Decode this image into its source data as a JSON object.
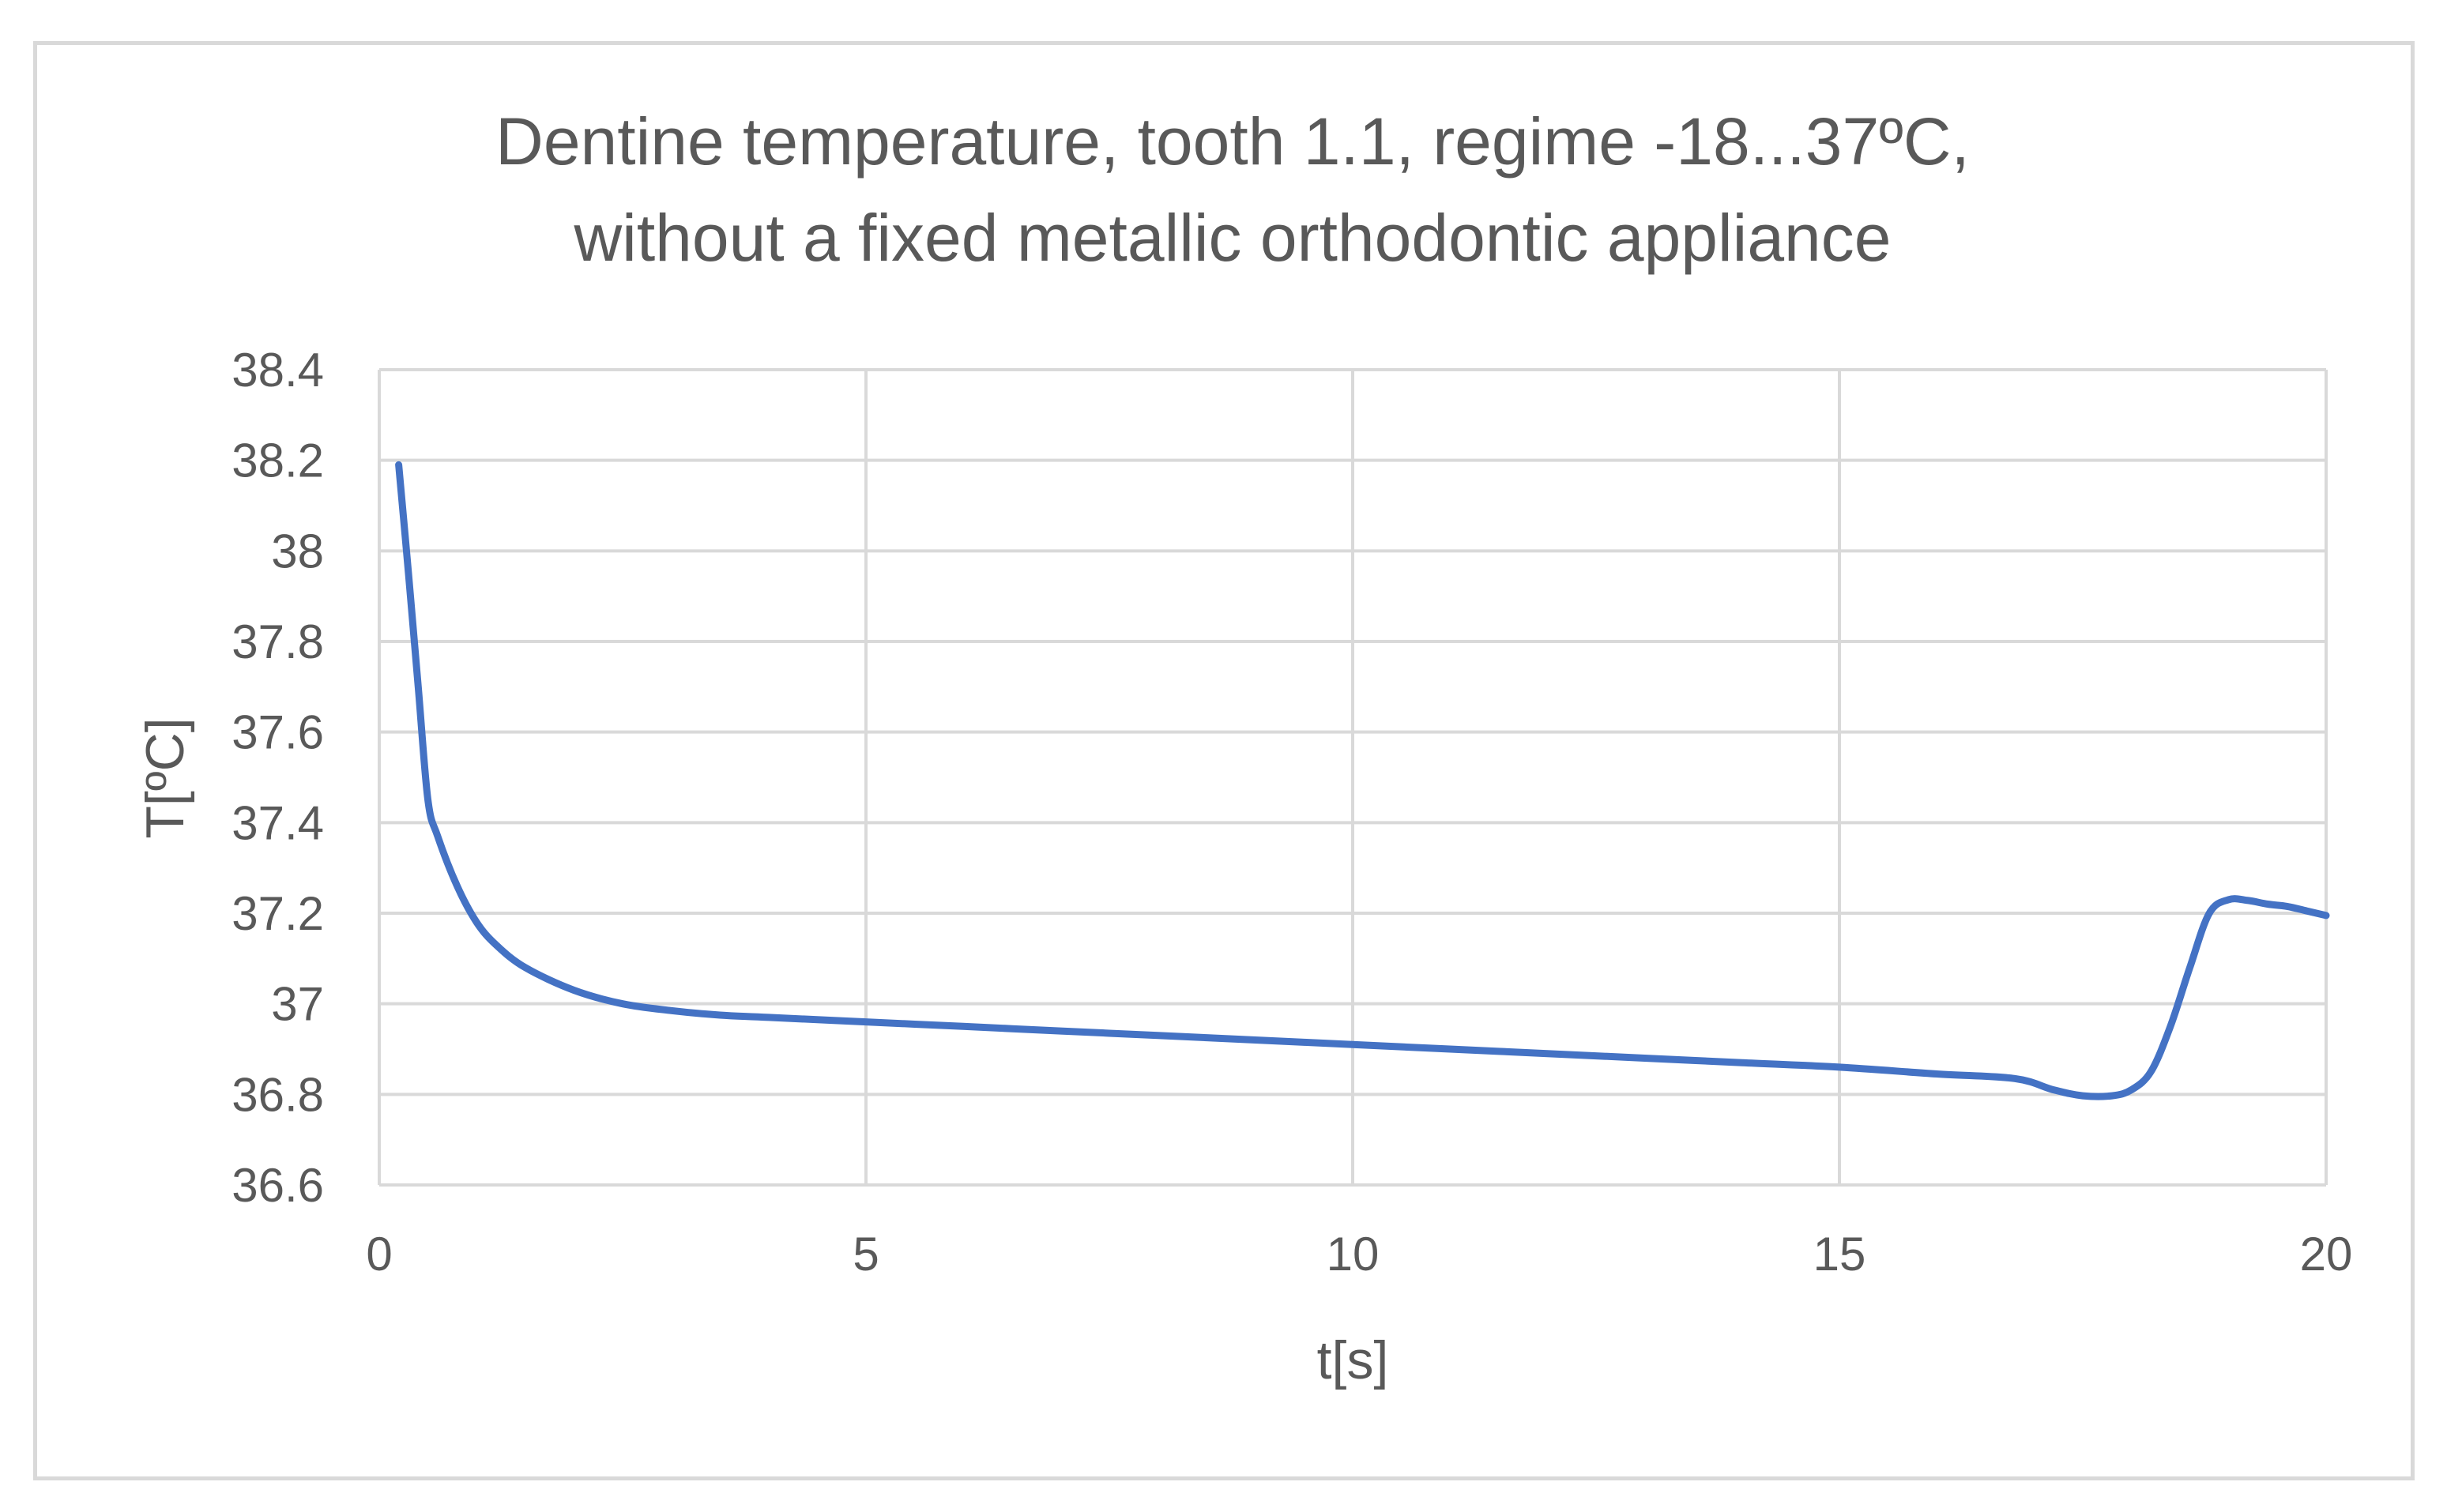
{
  "chart_data": {
    "type": "line",
    "title_line1": "Dentine temperature, tooth 1.1, regime -18...37ºC,",
    "title_line2": "without a fixed metallic orthodontic appliance",
    "xlabel": "t[s]",
    "ylabel": "T[ºC]",
    "xlim": [
      0,
      20
    ],
    "ylim": [
      36.6,
      38.4
    ],
    "x_ticks": [
      "0",
      "5",
      "10",
      "15",
      "20"
    ],
    "y_ticks": [
      "36.6",
      "36.8",
      "37",
      "37.2",
      "37.4",
      "37.6",
      "37.8",
      "38",
      "38.2",
      "38.4"
    ],
    "grid": true,
    "legend": "none",
    "series": [
      {
        "color": "#4472c4",
        "x": [
          0.2,
          0.3,
          0.4,
          0.5,
          0.6,
          0.8,
          1.0,
          1.2,
          1.5,
          2.0,
          2.5,
          3.0,
          3.5,
          4.0,
          5.0,
          6.0,
          7.0,
          8.0,
          9.0,
          10.0,
          11.0,
          12.0,
          13.0,
          14.0,
          15.0,
          16.0,
          16.8,
          17.2,
          17.5,
          17.8,
          18.0,
          18.2,
          18.4,
          18.6,
          18.8,
          19.0,
          19.2,
          19.4,
          19.6,
          19.8,
          20.0
        ],
        "y": [
          38.19,
          37.95,
          37.7,
          37.45,
          37.37,
          37.26,
          37.18,
          37.13,
          37.08,
          37.03,
          37.0,
          36.985,
          36.975,
          36.97,
          36.96,
          36.95,
          36.94,
          36.93,
          36.92,
          36.91,
          36.9,
          36.89,
          36.88,
          36.87,
          36.86,
          36.845,
          36.835,
          36.81,
          36.797,
          36.797,
          36.81,
          36.85,
          36.95,
          37.08,
          37.2,
          37.23,
          37.228,
          37.22,
          37.215,
          37.205,
          37.195
        ]
      }
    ]
  }
}
